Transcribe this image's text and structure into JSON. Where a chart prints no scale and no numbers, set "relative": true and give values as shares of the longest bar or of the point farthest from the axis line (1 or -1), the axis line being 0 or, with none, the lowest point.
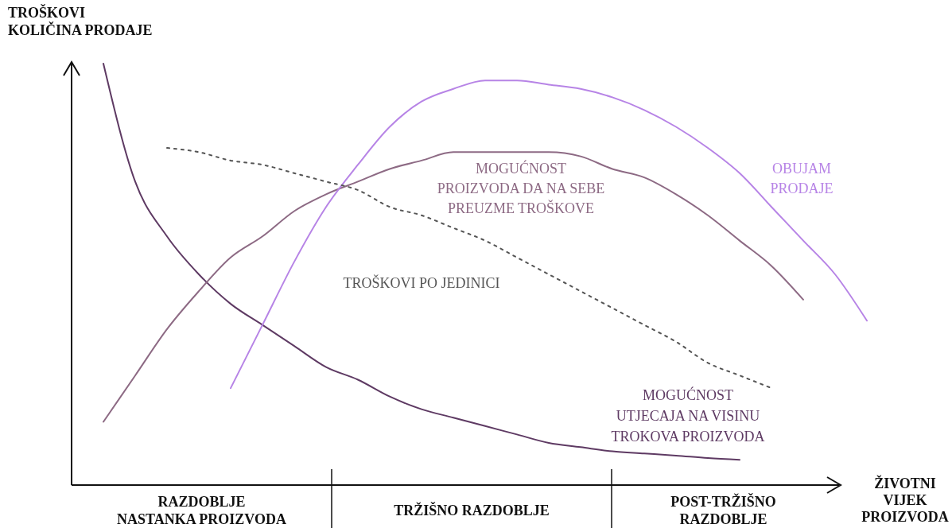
{
  "chart_data": {
    "type": "line",
    "relative": true,
    "ylabel": "TROŠKOVI\nKOLIČINA PRODAJE",
    "xlabel": "ŽIVOTNI\nVIJEK\nPROIZVODA",
    "categories": [
      null,
      null,
      null,
      null,
      null,
      null,
      null,
      null,
      null,
      null,
      null,
      null,
      null,
      null,
      null,
      null,
      null,
      null,
      null,
      null,
      null,
      null,
      null,
      null,
      null,
      null
    ],
    "series": [
      {
        "name": "MOGUĆNOST\nUTJECAJA NA VISINU\nTROKOVA PROIZVODA",
        "color": "#5e3a63",
        "line_style": "solid",
        "values": [
          null,
          1.0,
          0.72,
          0.59,
          0.5,
          0.43,
          0.38,
          0.33,
          0.28,
          0.25,
          0.21,
          0.18,
          0.16,
          0.14,
          0.12,
          0.1,
          0.09,
          0.08,
          0.075,
          0.07,
          0.064,
          0.06,
          null,
          null,
          null,
          null
        ]
      },
      {
        "name": "MOGUĆNOST\nPROIZVODA DA NA SEBE\nPREUZME TROŠKOVE",
        "color": "#8d6a84",
        "line_style": "solid",
        "values": [
          null,
          0.15,
          0.26,
          0.37,
          0.46,
          0.54,
          0.59,
          0.65,
          0.69,
          0.72,
          0.75,
          0.77,
          0.79,
          0.79,
          0.79,
          0.79,
          0.78,
          0.75,
          0.73,
          0.69,
          0.64,
          0.58,
          0.52,
          0.44,
          null,
          null
        ]
      },
      {
        "name": "OBUJAM\nPRODAJE",
        "color": "#b784e6",
        "line_style": "solid",
        "values": [
          null,
          null,
          null,
          null,
          null,
          0.23,
          0.38,
          0.53,
          0.66,
          0.76,
          0.85,
          0.91,
          0.94,
          0.96,
          0.96,
          0.95,
          0.94,
          0.92,
          0.89,
          0.85,
          0.8,
          0.74,
          0.66,
          0.58,
          0.5,
          0.39
        ]
      },
      {
        "name": "TROŠKOVI PO JEDINICI",
        "color": "#555555",
        "line_style": "dotted",
        "values": [
          null,
          null,
          null,
          0.8,
          0.79,
          0.77,
          0.76,
          0.74,
          0.72,
          0.7,
          0.66,
          0.64,
          0.61,
          0.58,
          0.54,
          0.5,
          0.46,
          0.42,
          0.38,
          0.34,
          0.29,
          0.26,
          0.23,
          null,
          null,
          null
        ]
      }
    ],
    "annotations": [
      "RAZDOBLJE\nNASTANKA PROIZVODA",
      "TRŽIŠNO RAZDOBLJE",
      "POST-TRŽIŠNO\nRAZDOBLJE"
    ],
    "legend": false
  }
}
